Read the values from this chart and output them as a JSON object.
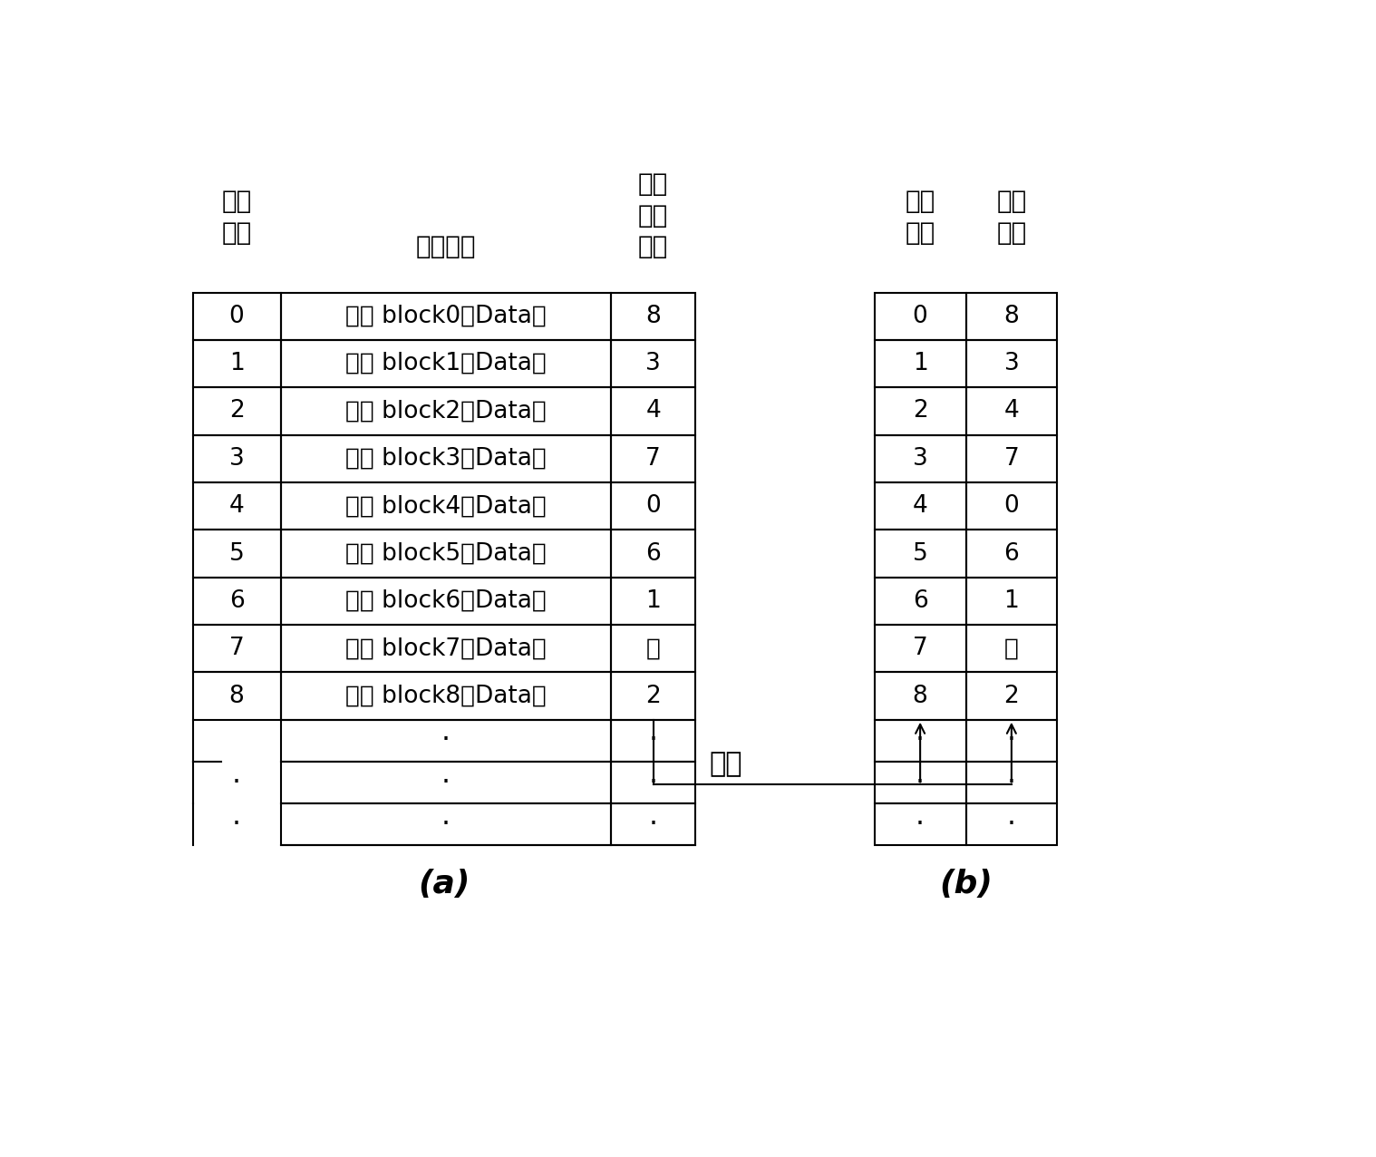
{
  "table_a": {
    "physical_block": [
      "0",
      "1",
      "2",
      "3",
      "4",
      "5",
      "6",
      "7",
      "8"
    ],
    "block_data": [
      "区块 block0（Data）",
      "区块 block1（Data）",
      "区块 block2（Data）",
      "区块 block3（Data）",
      "区块 block4（Data）",
      "区块 block5（Data）",
      "区块 block6（Data）",
      "区块 block7（Data）",
      "区块 block8（Data）"
    ],
    "logical_addr": [
      "8",
      "3",
      "4",
      "7",
      "0",
      "6",
      "1",
      "无",
      "2"
    ],
    "label": "(a)"
  },
  "table_b": {
    "physical_block": [
      "0",
      "1",
      "2",
      "3",
      "4",
      "5",
      "6",
      "7",
      "8"
    ],
    "logical_block": [
      "8",
      "3",
      "4",
      "7",
      "0",
      "6",
      "1",
      "无",
      "2"
    ],
    "label": "(b)",
    "copy_label": "复制"
  },
  "header_a_col1_line1": "实体",
  "header_a_col1_line2": "区块",
  "header_a_col2": "区块资料",
  "header_a_col3_line1": "逻辑",
  "header_a_col3_line2": "区块",
  "header_a_col3_line3": "位址",
  "header_b_col1_line1": "实体",
  "header_b_col1_line2": "区块",
  "header_b_col2_line1": "逻辑",
  "header_b_col2_line2": "区块",
  "bg_color": "#ffffff",
  "line_color": "#000000",
  "text_color": "#000000"
}
